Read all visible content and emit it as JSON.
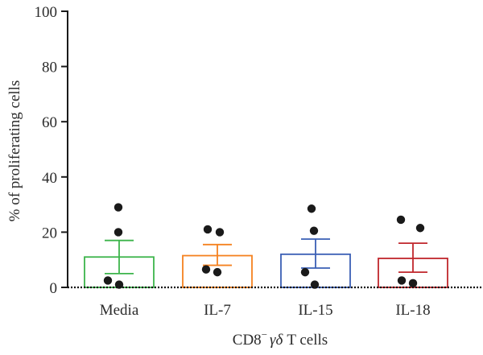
{
  "chart_data": {
    "type": "bar",
    "categories": [
      "Media",
      "IL-7",
      "IL-15",
      "IL-18"
    ],
    "series": [
      {
        "values": [
          11,
          11.5,
          12,
          10.5
        ],
        "sem_low": [
          5,
          8,
          7,
          5.5
        ],
        "sem_high": [
          17,
          15.5,
          17.5,
          16
        ],
        "points": [
          [
            29,
            20,
            2.5,
            1
          ],
          [
            21,
            20,
            6.5,
            5.5
          ],
          [
            28.5,
            20.5,
            5.5,
            1
          ],
          [
            24.5,
            21.5,
            2.5,
            1.5
          ]
        ]
      }
    ],
    "colors": [
      "#3cb44b",
      "#f58220",
      "#3a5fb5",
      "#c0262c"
    ],
    "point_color": "#1a1a1a",
    "ylabel": "% of proliferating cells",
    "xlabel_parts": {
      "prefix": "CD8",
      "superscript": "−",
      "greek": "γδ",
      "suffix": "T cells"
    },
    "ylim": [
      0,
      100
    ],
    "yticks": [
      0,
      20,
      40,
      60,
      80,
      100
    ],
    "grid": false,
    "reference_line": {
      "y": 0,
      "style": "dotted"
    }
  }
}
